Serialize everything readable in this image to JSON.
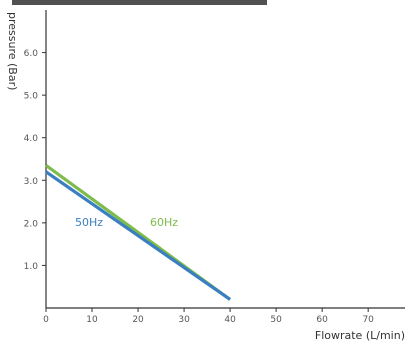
{
  "chart_data": {
    "type": "line",
    "title": "",
    "xlabel": "Flowrate (L/min)",
    "ylabel": "pressure (Bar)",
    "xlim": [
      0,
      78
    ],
    "ylim": [
      0,
      7
    ],
    "x_ticks": [
      0,
      10,
      20,
      30,
      40,
      50,
      60,
      70
    ],
    "y_ticks": [
      1.0,
      2.0,
      3.0,
      4.0,
      5.0,
      6.0
    ],
    "x_tick_labels": [
      "0",
      "10",
      "20",
      "30",
      "40",
      "50",
      "60",
      "70"
    ],
    "y_tick_labels": [
      "1.0",
      "2.0",
      "3.0",
      "4.0",
      "5.0",
      "6.0"
    ],
    "grid": false,
    "series": [
      {
        "name": "50Hz",
        "color": "#3a7fc1",
        "x": [
          0,
          40
        ],
        "y": [
          3.2,
          0.2
        ]
      },
      {
        "name": "60Hz",
        "color": "#7dbb4a",
        "x": [
          0,
          40
        ],
        "y": [
          3.35,
          0.2
        ]
      }
    ]
  }
}
